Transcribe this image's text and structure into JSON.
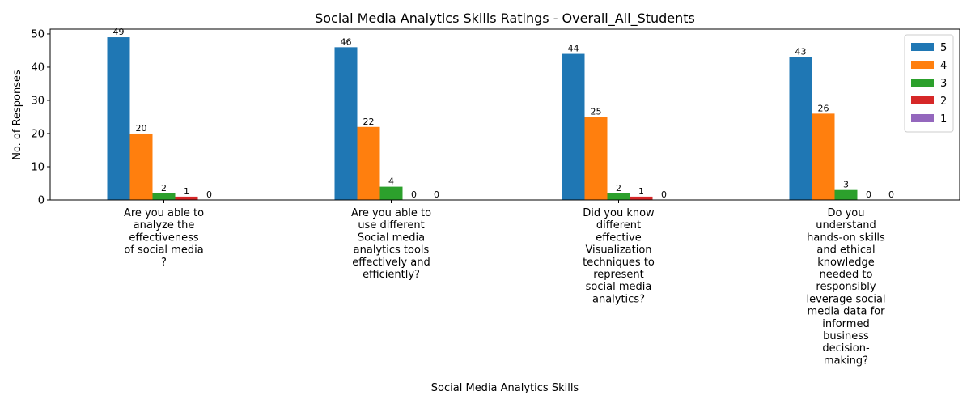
{
  "chart_data": {
    "type": "bar",
    "title": "Social Media Analytics Skills Ratings - Overall_All_Students",
    "xlabel": "Social Media Analytics Skills",
    "ylabel": "No. of Responses",
    "ylim": [
      0,
      51.45
    ],
    "yticks": [
      0,
      10,
      20,
      30,
      40,
      50
    ],
    "grid": false,
    "legend_position": "top-right",
    "categories": [
      [
        "Are you able to",
        "analyze the",
        "effectiveness",
        "of social media",
        "?"
      ],
      [
        "Are you able to",
        "use different",
        "Social media",
        "analytics tools",
        "effectively and",
        "efficiently?"
      ],
      [
        "Did you know",
        "different",
        "effective",
        "Visualization",
        "techniques to",
        "represent",
        "social media",
        "analytics?"
      ],
      [
        "Do you",
        "understand",
        "hands-on skills",
        "and ethical",
        "knowledge",
        "needed to",
        "responsibly",
        "leverage social",
        "media data for",
        "informed",
        "business",
        "decision-",
        "making?"
      ]
    ],
    "series": [
      {
        "name": "5",
        "color": "#1f77b4",
        "values": [
          49,
          46,
          44,
          43
        ]
      },
      {
        "name": "4",
        "color": "#ff7f0e",
        "values": [
          20,
          22,
          25,
          26
        ]
      },
      {
        "name": "3",
        "color": "#2ca02c",
        "values": [
          2,
          4,
          2,
          3
        ]
      },
      {
        "name": "2",
        "color": "#d62728",
        "values": [
          1,
          0,
          1,
          0
        ]
      },
      {
        "name": "1",
        "color": "#9467bd",
        "values": [
          0,
          0,
          0,
          0
        ]
      }
    ]
  }
}
